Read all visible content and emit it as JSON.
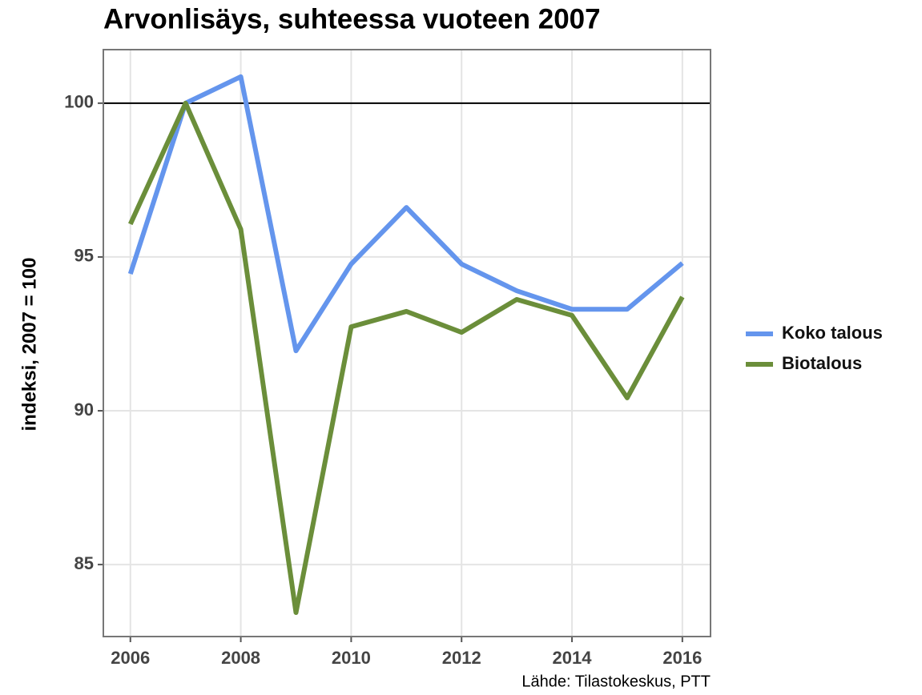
{
  "chart_data": {
    "type": "line",
    "title": "Arvonlisäys, suhteessa vuoteen 2007",
    "y_label": "indeksi, 2007 = 100",
    "caption": "Lähde: Tilastokeskus, PTT",
    "x": [
      2006,
      2007,
      2008,
      2009,
      2010,
      2011,
      2012,
      2013,
      2014,
      2015,
      2016
    ],
    "series": [
      {
        "name": "Koko talous",
        "color": "#6495ed",
        "values": [
          94.45,
          100,
          100.86,
          91.95,
          94.77,
          96.61,
          94.77,
          93.9,
          93.3,
          93.3,
          94.8
        ]
      },
      {
        "name": "Biotalous",
        "color": "#6b8e3a",
        "values": [
          96.07,
          100,
          95.9,
          83.44,
          92.73,
          93.23,
          92.55,
          93.62,
          93.1,
          90.42,
          93.7
        ]
      }
    ],
    "xlim": [
      2005.51,
      2016.51
    ],
    "xticks": [
      2006,
      2008,
      2010,
      2012,
      2014,
      2016
    ],
    "ylim": [
      82.66,
      101.74
    ],
    "yticks": [
      85,
      90,
      95,
      100
    ],
    "hline": 100,
    "grid": true,
    "legend": "right"
  }
}
